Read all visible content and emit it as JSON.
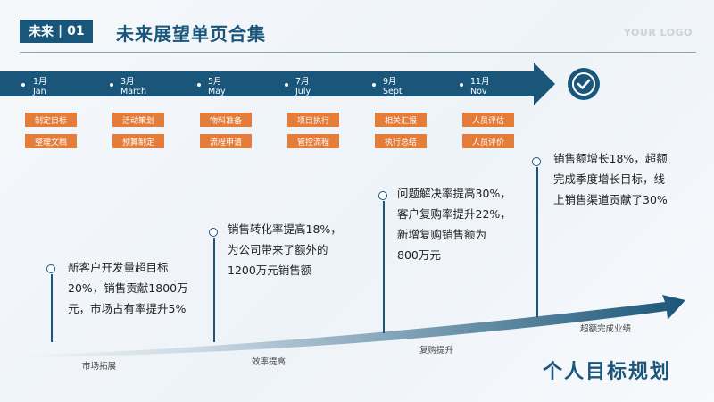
{
  "header": {
    "section": "未来",
    "number": "01",
    "title": "未来展望单页合集",
    "logo": "YOUR LOGO"
  },
  "timeline": {
    "months": [
      {
        "num": "1月",
        "name": "Jan"
      },
      {
        "num": "3月",
        "name": "March"
      },
      {
        "num": "5月",
        "name": "May"
      },
      {
        "num": "7月",
        "name": "July"
      },
      {
        "num": "9月",
        "name": "Sept"
      },
      {
        "num": "11月",
        "name": "Nov"
      }
    ],
    "tasks": [
      [
        "制定目标",
        "整理文档"
      ],
      [
        "活动策划",
        "预算制定"
      ],
      [
        "物料准备",
        "流程申请"
      ],
      [
        "项目执行",
        "管控流程"
      ],
      [
        "相关汇报",
        "执行总结"
      ],
      [
        "人员评估",
        "人员评价"
      ]
    ]
  },
  "milestones": [
    {
      "lines": [
        "新客户开发量超目标",
        "20%，销售贡献1800万",
        "元，市场占有率提升5%"
      ],
      "label": "市场拓展"
    },
    {
      "lines": [
        "销售转化率提高18%，",
        "为公司带来了额外的",
        "1200万元销售额"
      ],
      "label": "效率提高"
    },
    {
      "lines": [
        "问题解决率提高30%，",
        "客户复购率提升22%，",
        "新增复购销售额为",
        "800万元"
      ],
      "label": "复购提升"
    },
    {
      "lines": [
        "销售额增长18%，超额",
        "完成季度增长目标，线",
        "上销售渠道贡献了30%"
      ],
      "label": "超额完成业绩"
    }
  ],
  "footer": {
    "title": "个人目标规划"
  },
  "colors": {
    "primary": "#1a5679",
    "accent": "#e47c3a"
  }
}
